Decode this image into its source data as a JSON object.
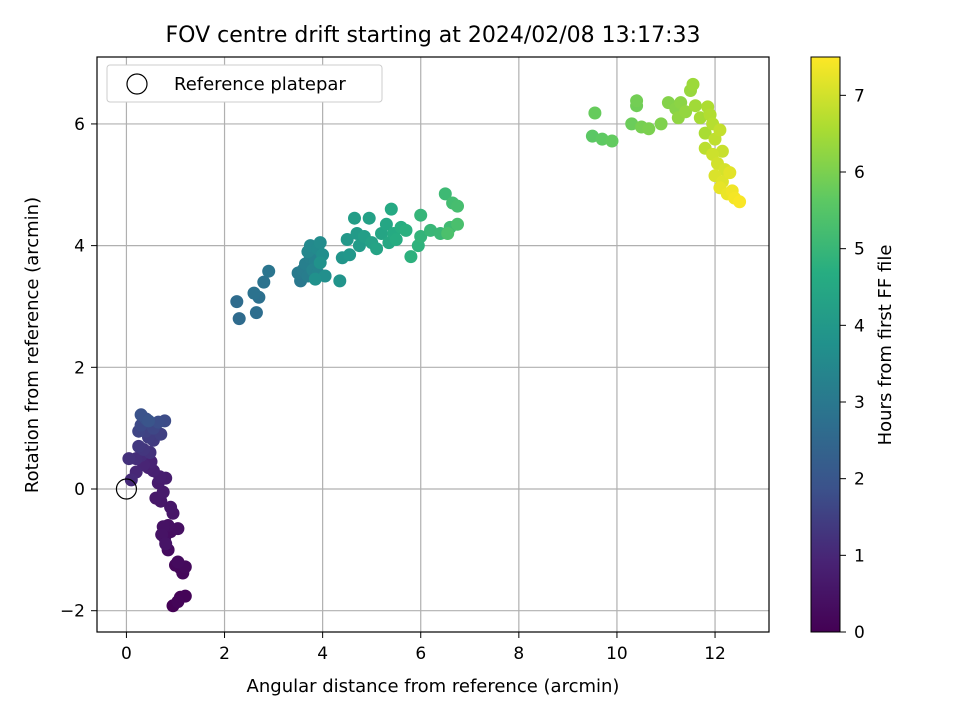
{
  "chart_data": {
    "type": "scatter",
    "title": "FOV centre drift starting at 2024/02/08 13:17:33",
    "xlabel": "Angular distance from reference (arcmin)",
    "ylabel": "Rotation from reference (arcmin)",
    "xlim": [
      -0.6,
      13.1
    ],
    "ylim": [
      -2.35,
      7.1
    ],
    "xticks": [
      0,
      2,
      4,
      6,
      8,
      10,
      12
    ],
    "yticks": [
      -2,
      0,
      2,
      4,
      6
    ],
    "xtick_labels": [
      "0",
      "2",
      "4",
      "6",
      "8",
      "10",
      "12"
    ],
    "ytick_labels": [
      "−2",
      "0",
      "2",
      "4",
      "6"
    ],
    "grid": true,
    "colormap": "viridis",
    "colorbar": {
      "label": "Hours from first FF file",
      "range": [
        0,
        7.5
      ],
      "ticks": [
        0,
        1,
        2,
        3,
        4,
        5,
        6,
        7
      ],
      "tick_labels": [
        "0",
        "1",
        "2",
        "3",
        "4",
        "5",
        "6",
        "7"
      ]
    },
    "legend": {
      "position": "top-left",
      "entries": [
        {
          "label": "Reference platepar",
          "marker": "open-circle",
          "x": 0,
          "y": 0
        }
      ]
    },
    "series": [
      {
        "marker": "filled-circle",
        "points": [
          [
            0.95,
            -1.92,
            0.02
          ],
          [
            1.1,
            -1.78,
            0.05
          ],
          [
            1.2,
            -1.76,
            0.08
          ],
          [
            1.05,
            -1.85,
            0.11
          ],
          [
            1.1,
            -1.3,
            0.15
          ],
          [
            1.0,
            -1.25,
            0.18
          ],
          [
            1.15,
            -1.38,
            0.2
          ],
          [
            1.2,
            -1.28,
            0.24
          ],
          [
            1.05,
            -1.2,
            0.27
          ],
          [
            0.85,
            -1.0,
            0.3
          ],
          [
            0.78,
            -0.8,
            0.33
          ],
          [
            0.9,
            -0.7,
            0.36
          ],
          [
            1.05,
            -0.65,
            0.39
          ],
          [
            0.85,
            -0.6,
            0.42
          ],
          [
            0.75,
            -0.62,
            0.45
          ],
          [
            0.72,
            -0.75,
            0.48
          ],
          [
            0.8,
            -0.9,
            0.51
          ],
          [
            0.95,
            -0.4,
            0.54
          ],
          [
            0.9,
            -0.3,
            0.57
          ],
          [
            0.7,
            -0.2,
            0.6
          ],
          [
            0.6,
            -0.15,
            0.63
          ],
          [
            0.75,
            -0.05,
            0.66
          ],
          [
            0.65,
            0.1,
            0.7
          ],
          [
            0.8,
            0.18,
            0.74
          ],
          [
            0.68,
            0.2,
            0.78
          ],
          [
            0.55,
            0.3,
            0.82
          ],
          [
            0.45,
            0.35,
            0.86
          ],
          [
            0.5,
            0.45,
            0.9
          ],
          [
            0.35,
            0.4,
            0.95
          ],
          [
            0.2,
            0.28,
            1.0
          ],
          [
            0.1,
            0.15,
            1.05
          ],
          [
            0.3,
            0.55,
            1.1
          ],
          [
            0.2,
            0.5,
            1.15
          ],
          [
            0.05,
            0.5,
            1.2
          ],
          [
            0.48,
            0.6,
            1.25
          ],
          [
            0.35,
            0.65,
            1.3
          ],
          [
            0.25,
            0.7,
            1.35
          ],
          [
            0.55,
            0.8,
            1.4
          ],
          [
            0.45,
            0.85,
            1.45
          ],
          [
            0.7,
            0.9,
            1.5
          ],
          [
            0.4,
            0.95,
            1.55
          ],
          [
            0.25,
            0.95,
            1.6
          ],
          [
            0.55,
            1.0,
            1.65
          ],
          [
            0.3,
            1.05,
            1.7
          ],
          [
            0.78,
            1.12,
            1.75
          ],
          [
            0.65,
            1.1,
            1.8
          ],
          [
            0.4,
            1.15,
            1.85
          ],
          [
            0.3,
            1.22,
            1.9
          ],
          [
            0.45,
            1.12,
            1.95
          ],
          [
            2.3,
            2.8,
            2.6
          ],
          [
            2.25,
            3.08,
            2.65
          ],
          [
            2.65,
            2.9,
            2.7
          ],
          [
            2.7,
            3.15,
            2.75
          ],
          [
            2.6,
            3.22,
            2.8
          ],
          [
            2.8,
            3.4,
            2.85
          ],
          [
            2.9,
            3.58,
            2.9
          ],
          [
            3.55,
            3.42,
            3.0
          ],
          [
            3.5,
            3.55,
            3.05
          ],
          [
            3.6,
            3.6,
            3.1
          ],
          [
            3.7,
            3.5,
            3.15
          ],
          [
            3.65,
            3.7,
            3.2
          ],
          [
            3.75,
            3.8,
            3.25
          ],
          [
            3.85,
            3.75,
            3.3
          ],
          [
            3.8,
            3.6,
            3.35
          ],
          [
            3.9,
            3.55,
            3.4
          ],
          [
            3.7,
            3.9,
            3.45
          ],
          [
            3.75,
            4.0,
            3.5
          ],
          [
            3.9,
            3.95,
            3.55
          ],
          [
            3.95,
            4.05,
            3.6
          ],
          [
            4.0,
            3.85,
            3.65
          ],
          [
            4.05,
            3.5,
            3.7
          ],
          [
            3.85,
            3.45,
            3.75
          ],
          [
            3.95,
            3.72,
            3.8
          ],
          [
            4.35,
            3.42,
            3.85
          ],
          [
            4.4,
            3.8,
            3.9
          ],
          [
            4.55,
            3.85,
            3.95
          ],
          [
            4.5,
            4.1,
            4.0
          ],
          [
            4.7,
            4.2,
            4.05
          ],
          [
            4.75,
            4.0,
            4.1
          ],
          [
            4.65,
            4.45,
            4.15
          ],
          [
            4.85,
            4.15,
            4.2
          ],
          [
            4.95,
            4.45,
            4.25
          ],
          [
            5.0,
            4.05,
            4.3
          ],
          [
            5.1,
            3.95,
            4.35
          ],
          [
            5.2,
            4.2,
            4.4
          ],
          [
            5.3,
            4.35,
            4.45
          ],
          [
            5.35,
            4.05,
            4.5
          ],
          [
            5.4,
            4.6,
            4.55
          ],
          [
            5.45,
            4.2,
            4.6
          ],
          [
            5.5,
            4.1,
            4.65
          ],
          [
            5.6,
            4.3,
            4.7
          ],
          [
            5.7,
            4.25,
            4.75
          ],
          [
            5.8,
            3.82,
            4.8
          ],
          [
            5.95,
            4.0,
            4.85
          ],
          [
            6.0,
            4.15,
            4.9
          ],
          [
            6.0,
            4.5,
            4.95
          ],
          [
            6.2,
            4.25,
            5.0
          ],
          [
            6.4,
            4.2,
            5.05
          ],
          [
            6.5,
            4.85,
            5.1
          ],
          [
            6.6,
            4.3,
            5.15
          ],
          [
            6.65,
            4.7,
            5.2
          ],
          [
            6.75,
            4.65,
            5.25
          ],
          [
            6.75,
            4.35,
            5.3
          ],
          [
            6.55,
            4.2,
            5.35
          ],
          [
            9.5,
            5.8,
            5.6
          ],
          [
            9.7,
            5.75,
            5.65
          ],
          [
            9.9,
            5.72,
            5.7
          ],
          [
            9.55,
            6.18,
            5.75
          ],
          [
            10.3,
            6.0,
            5.8
          ],
          [
            10.4,
            6.3,
            5.85
          ],
          [
            10.4,
            6.38,
            5.9
          ],
          [
            10.5,
            5.95,
            5.95
          ],
          [
            10.65,
            5.92,
            6.0
          ],
          [
            10.9,
            6.0,
            6.05
          ],
          [
            11.05,
            6.35,
            6.1
          ],
          [
            11.2,
            6.25,
            6.15
          ],
          [
            11.3,
            6.35,
            6.2
          ],
          [
            11.25,
            6.1,
            6.25
          ],
          [
            11.4,
            6.2,
            6.3
          ],
          [
            11.5,
            6.55,
            6.35
          ],
          [
            11.55,
            6.65,
            6.4
          ],
          [
            11.6,
            6.3,
            6.45
          ],
          [
            11.7,
            6.1,
            6.5
          ],
          [
            11.8,
            5.85,
            6.55
          ],
          [
            11.85,
            6.28,
            6.6
          ],
          [
            11.9,
            6.15,
            6.65
          ],
          [
            11.95,
            6.0,
            6.7
          ],
          [
            11.8,
            5.6,
            6.75
          ],
          [
            12.0,
            5.75,
            6.8
          ],
          [
            12.1,
            5.9,
            6.85
          ],
          [
            12.15,
            5.55,
            6.9
          ],
          [
            11.95,
            5.5,
            6.95
          ],
          [
            12.05,
            5.35,
            7.0
          ],
          [
            12.2,
            5.25,
            7.05
          ],
          [
            12.0,
            5.15,
            7.1
          ],
          [
            12.15,
            5.05,
            7.15
          ],
          [
            12.3,
            5.2,
            7.2
          ],
          [
            12.1,
            4.95,
            7.25
          ],
          [
            12.25,
            4.85,
            7.3
          ],
          [
            12.35,
            4.9,
            7.35
          ],
          [
            12.4,
            4.78,
            7.4
          ],
          [
            12.5,
            4.72,
            7.45
          ]
        ]
      }
    ]
  }
}
